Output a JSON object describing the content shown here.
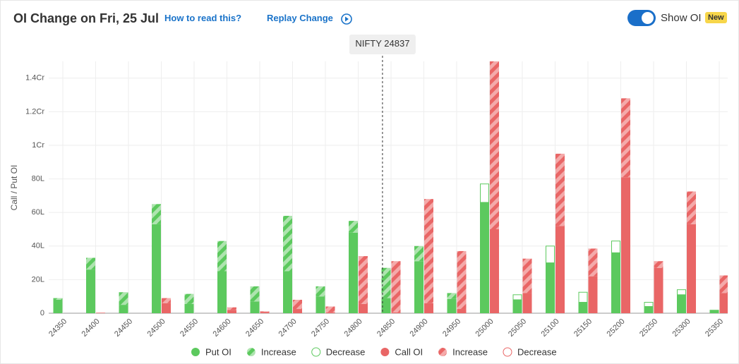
{
  "header": {
    "title": "OI Change on Fri, 25 Jul",
    "help_link": "How to read this?",
    "replay": "Replay Change",
    "toggle_label": "Show OI",
    "badge": "New"
  },
  "chart_data": {
    "type": "bar",
    "y_label": "Call / Put OI",
    "spot_label": "NIFTY",
    "spot": 24837,
    "categories": [
      "24350",
      "24400",
      "24450",
      "24500",
      "24550",
      "24600",
      "24650",
      "24700",
      "24750",
      "24800",
      "24850",
      "24900",
      "24950",
      "25000",
      "25050",
      "25100",
      "25150",
      "25200",
      "25250",
      "25300",
      "25350"
    ],
    "x_values": [
      24350,
      24400,
      24450,
      24500,
      24550,
      24600,
      24650,
      24700,
      24750,
      24800,
      24850,
      24900,
      24950,
      25000,
      25050,
      25100,
      25150,
      25200,
      25250,
      25300,
      25350
    ],
    "series": [
      {
        "name": "Put OI",
        "group": "put",
        "style": "solid",
        "color": "#5cc95e",
        "values": [
          8,
          26,
          5,
          53,
          5.5,
          25,
          7,
          25,
          10,
          48,
          9,
          31,
          8.5,
          66,
          8,
          30,
          6.5,
          36,
          4,
          11,
          2
        ]
      },
      {
        "name": "Increase",
        "group": "put",
        "style": "hatch",
        "color": "#5cc95e",
        "values": [
          1,
          7,
          7.5,
          12,
          6,
          18,
          9,
          33,
          6,
          7,
          18,
          9,
          3.5,
          null,
          null,
          null,
          null,
          null,
          null,
          null,
          null
        ]
      },
      {
        "name": "Decrease",
        "group": "put",
        "style": "outline",
        "color": "#5cc95e",
        "values": [
          null,
          null,
          null,
          null,
          null,
          null,
          null,
          null,
          null,
          null,
          null,
          null,
          null,
          11,
          3,
          10,
          6,
          7,
          2.5,
          3,
          null
        ]
      },
      {
        "name": "Call OI",
        "group": "call",
        "style": "solid",
        "color": "#e96666",
        "values": [
          0,
          0.3,
          0,
          6,
          0,
          2,
          0.8,
          2.5,
          0.5,
          5.5,
          0.5,
          6,
          2.5,
          50,
          12,
          52,
          22,
          81,
          27,
          53,
          12
        ]
      },
      {
        "name": "Increase",
        "group": "call",
        "style": "hatch",
        "color": "#e96666",
        "values": [
          null,
          null,
          null,
          3,
          null,
          1.5,
          0.3,
          5.5,
          3.5,
          28.5,
          30.5,
          62,
          34.5,
          100,
          20.5,
          43,
          16.5,
          47,
          4,
          19.5,
          10.5
        ]
      },
      {
        "name": "Decrease",
        "group": "call",
        "style": "outline",
        "color": "#e96666",
        "values": [
          null,
          null,
          null,
          null,
          null,
          null,
          null,
          null,
          null,
          null,
          null,
          null,
          null,
          null,
          null,
          null,
          null,
          null,
          null,
          null,
          null
        ]
      }
    ],
    "ylim": [
      0,
      150
    ],
    "yticks": [
      0,
      {
        "value": 20,
        "label": "20L"
      },
      {
        "value": 40,
        "label": "40L"
      },
      {
        "value": 60,
        "label": "60L"
      },
      {
        "value": 80,
        "label": "80L"
      },
      {
        "value": 100,
        "label": "1Cr"
      },
      {
        "value": 120,
        "label": "1.2Cr"
      },
      {
        "value": 140,
        "label": "1.4Cr"
      }
    ],
    "grid": true
  }
}
